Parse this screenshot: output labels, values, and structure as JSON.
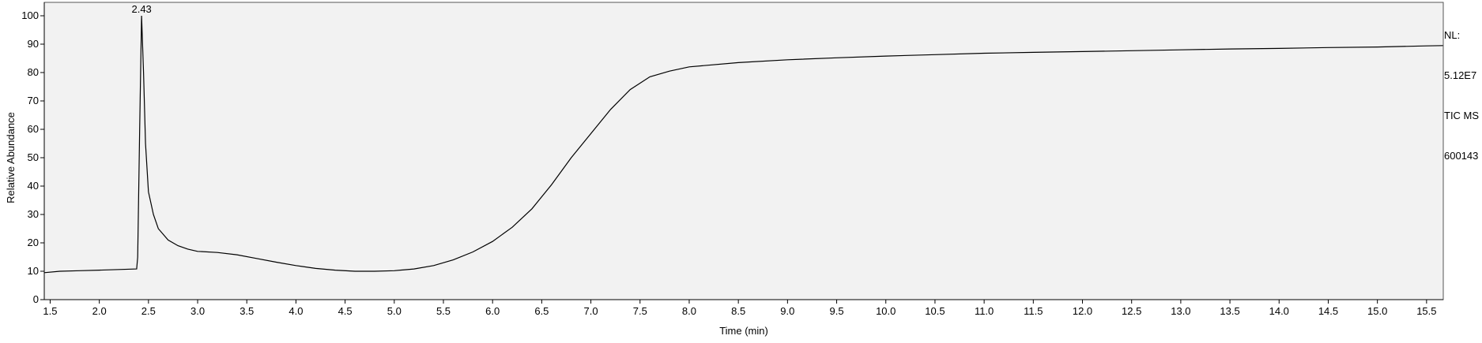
{
  "chart_data": {
    "type": "line",
    "title": "",
    "xlabel": "Time (min)",
    "ylabel": "Relative Abundance",
    "xlim": [
      1.44,
      15.67
    ],
    "ylim": [
      0,
      100
    ],
    "xticks": [
      1.5,
      2.0,
      2.5,
      3.0,
      3.5,
      4.0,
      4.5,
      5.0,
      5.5,
      6.0,
      6.5,
      7.0,
      7.5,
      8.0,
      8.5,
      9.0,
      9.5,
      10.0,
      10.5,
      11.0,
      11.5,
      12.0,
      12.5,
      13.0,
      13.5,
      14.0,
      14.5,
      15.0,
      15.5
    ],
    "yticks": [
      0,
      10,
      20,
      30,
      40,
      50,
      60,
      70,
      80,
      90,
      100
    ],
    "grid": false,
    "line_color": "#000000",
    "background_color": "#f2f2f2",
    "peak_annotation": {
      "x": 2.43,
      "y": 100,
      "label": "2.43"
    },
    "series": [
      {
        "x": [
          1.44,
          1.6,
          1.8,
          2.0,
          2.2,
          2.38,
          2.39,
          2.41,
          2.43,
          2.45,
          2.47,
          2.5,
          2.55,
          2.6,
          2.7,
          2.8,
          2.9,
          3.0,
          3.2,
          3.4,
          3.6,
          3.8,
          4.0,
          4.2,
          4.4,
          4.6,
          4.8,
          5.0,
          5.2,
          5.4,
          5.6,
          5.8,
          6.0,
          6.2,
          6.4,
          6.6,
          6.8,
          7.0,
          7.2,
          7.4,
          7.6,
          7.8,
          8.0,
          8.5,
          9.0,
          9.5,
          10.0,
          10.5,
          11.0,
          11.5,
          12.0,
          12.5,
          13.0,
          13.5,
          14.0,
          14.5,
          15.0,
          15.5,
          15.67
        ],
        "y": [
          9.5,
          10.0,
          10.2,
          10.4,
          10.6,
          10.8,
          15.0,
          60.0,
          100.0,
          80.0,
          55.0,
          38.0,
          30.0,
          25.0,
          21.0,
          19.0,
          17.8,
          17.0,
          16.6,
          15.8,
          14.5,
          13.2,
          12.0,
          11.0,
          10.4,
          10.0,
          10.0,
          10.2,
          10.8,
          12.0,
          14.0,
          16.8,
          20.5,
          25.5,
          32.0,
          40.5,
          50.0,
          58.5,
          67.0,
          74.0,
          78.5,
          80.5,
          82.0,
          83.5,
          84.5,
          85.2,
          85.8,
          86.3,
          86.8,
          87.1,
          87.4,
          87.7,
          88.0,
          88.3,
          88.5,
          88.8,
          89.0,
          89.4,
          89.5
        ]
      }
    ],
    "side_notes": [
      "NL:",
      "5.12E7",
      "TIC  MS",
      "600143"
    ]
  }
}
